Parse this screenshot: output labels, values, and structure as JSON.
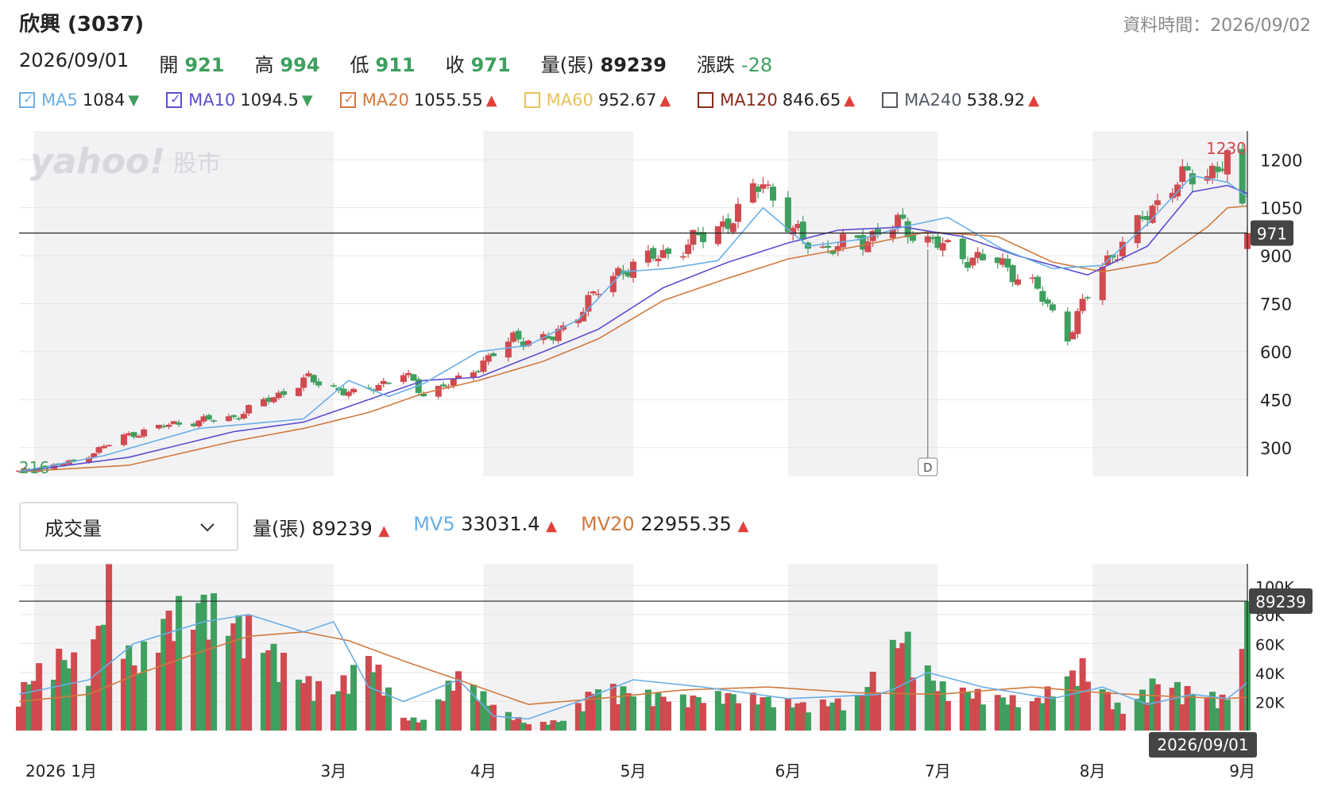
{
  "header": {
    "title": "欣興 (3037)",
    "data_time": "資料時間：2026/09/02"
  },
  "ohlc": {
    "date": "2026/09/01",
    "open_label": "開",
    "open": "921",
    "high_label": "高",
    "high": "994",
    "low_label": "低",
    "low": "911",
    "close_label": "收",
    "close": "971",
    "vol_label": "量(張)",
    "vol": "89239",
    "chg_label": "漲跌",
    "chg": "-28"
  },
  "ma_legend": [
    {
      "name": "MA5",
      "value": "1084",
      "dir": "down",
      "color": "#6aaee6",
      "checked": true
    },
    {
      "name": "MA10",
      "value": "1094.5",
      "dir": "down",
      "color": "#5a4fd0",
      "checked": true
    },
    {
      "name": "MA20",
      "value": "1055.55",
      "dir": "up",
      "color": "#d07a3e",
      "checked": true
    },
    {
      "name": "MA60",
      "value": "952.67",
      "dir": "up",
      "color": "#e8c25a",
      "checked": false
    },
    {
      "name": "MA120",
      "value": "846.65",
      "dir": "up",
      "color": "#8a2a1a",
      "checked": false
    },
    {
      "name": "MA240",
      "value": "538.92",
      "dir": "up",
      "color": "#555a66",
      "checked": false
    }
  ],
  "icons": {
    "arrow_up": "▲",
    "arrow_down": "▼",
    "check": "✓",
    "chevron": "chevron-down-icon"
  },
  "watermark": {
    "brand": "yahoo!",
    "sub": "股市"
  },
  "volume_panel": {
    "select_label": "成交量",
    "vol_label": "量(張)",
    "vol_value": "89239",
    "vol_dir": "up",
    "mv5_label": "MV5",
    "mv5_value": "33031.4",
    "mv5_dir": "up",
    "mv20_label": "MV20",
    "mv20_value": "22955.35",
    "mv20_dir": "up"
  },
  "colors": {
    "up": "#d04a4f",
    "down": "#3f9f5f",
    "ma5": "#6aaee6",
    "ma10": "#5a4fd0",
    "ma20": "#d07a3e",
    "band": "#f2f2f4",
    "grid": "#e6e6e6"
  },
  "chart_data": [
    {
      "type": "candlestick",
      "title": "",
      "x_range": [
        "2025-12-29",
        "2026-09-01"
      ],
      "y_ticks": [
        "1200",
        "1050",
        "900",
        "750",
        "600",
        "450",
        "300"
      ],
      "ylim": [
        210,
        1290
      ],
      "min_label": "216",
      "max_label": "1230",
      "current_price_label": "971",
      "current_price": 971,
      "markers": [
        {
          "label": "D",
          "date": "2026-06-29"
        }
      ],
      "month_labels": [
        {
          "label": "2026 1月",
          "date": "2026-01-01"
        },
        {
          "label": "3月",
          "date": "2026-03-02"
        },
        {
          "label": "4月",
          "date": "2026-04-01"
        },
        {
          "label": "5月",
          "date": "2026-05-01"
        },
        {
          "label": "6月",
          "date": "2026-06-01"
        },
        {
          "label": "7月",
          "date": "2026-07-01"
        },
        {
          "label": "8月",
          "date": "2026-08-01"
        },
        {
          "label": "9月",
          "date": "2026-09-01"
        }
      ],
      "close_path_dates": [
        "2025-12-29",
        "2026-01-09",
        "2026-01-19",
        "2026-01-29",
        "2026-02-10",
        "2026-02-25",
        "2026-03-06",
        "2026-03-16",
        "2026-03-20",
        "2026-03-27",
        "2026-04-07",
        "2026-04-15",
        "2026-04-22",
        "2026-04-29",
        "2026-05-08",
        "2026-05-15",
        "2026-05-22",
        "2026-05-27",
        "2026-06-02",
        "2026-06-09",
        "2026-06-16",
        "2026-06-23",
        "2026-06-29",
        "2026-07-06",
        "2026-07-13",
        "2026-07-20",
        "2026-07-27",
        "2026-08-03",
        "2026-08-10",
        "2026-08-17",
        "2026-08-24",
        "2026-08-28",
        "2026-09-01"
      ],
      "close_path": [
        225,
        255,
        335,
        375,
        395,
        515,
        465,
        530,
        470,
        510,
        640,
        640,
        760,
        860,
        910,
        960,
        1030,
        1140,
        970,
        920,
        950,
        1000,
        950,
        900,
        880,
        810,
        650,
        870,
        990,
        1130,
        1160,
        1200,
        971
      ],
      "ma5_dates": [
        "2025-12-29",
        "2026-01-15",
        "2026-02-03",
        "2026-02-24",
        "2026-03-05",
        "2026-03-13",
        "2026-03-20",
        "2026-03-31",
        "2026-04-10",
        "2026-04-20",
        "2026-04-29",
        "2026-05-08",
        "2026-05-18",
        "2026-05-27",
        "2026-06-05",
        "2026-06-15",
        "2026-06-24",
        "2026-07-03",
        "2026-07-14",
        "2026-07-24",
        "2026-08-03",
        "2026-08-12",
        "2026-08-21",
        "2026-08-28",
        "2026-09-01"
      ],
      "ma5": [
        225,
        275,
        360,
        390,
        510,
        460,
        500,
        600,
        620,
        700,
        850,
        860,
        885,
        1050,
        930,
        950,
        990,
        1020,
        920,
        860,
        870,
        1000,
        1150,
        1130,
        1084
      ],
      "ma10_dates": [
        "2025-12-29",
        "2026-01-20",
        "2026-02-10",
        "2026-02-24",
        "2026-03-09",
        "2026-03-20",
        "2026-03-31",
        "2026-04-13",
        "2026-04-24",
        "2026-05-07",
        "2026-05-20",
        "2026-06-01",
        "2026-06-11",
        "2026-06-24",
        "2026-07-06",
        "2026-07-17",
        "2026-07-31",
        "2026-08-12",
        "2026-08-21",
        "2026-08-28",
        "2026-09-01"
      ],
      "ma10": [
        225,
        270,
        350,
        380,
        450,
        510,
        520,
        600,
        670,
        800,
        880,
        940,
        980,
        990,
        960,
        900,
        840,
        930,
        1100,
        1120,
        1094.5
      ],
      "ma20_dates": [
        "2025-12-29",
        "2026-01-20",
        "2026-02-10",
        "2026-02-24",
        "2026-03-09",
        "2026-03-20",
        "2026-03-31",
        "2026-04-13",
        "2026-04-24",
        "2026-05-07",
        "2026-05-20",
        "2026-06-01",
        "2026-06-15",
        "2026-06-29",
        "2026-07-13",
        "2026-07-24",
        "2026-08-03",
        "2026-08-14",
        "2026-08-24",
        "2026-08-28",
        "2026-09-01"
      ],
      "ma20": [
        225,
        245,
        320,
        360,
        410,
        470,
        510,
        570,
        640,
        760,
        830,
        890,
        930,
        975,
        960,
        880,
        850,
        880,
        990,
        1050,
        1055.55
      ]
    },
    {
      "type": "bar",
      "title": "",
      "y_ticks": [
        "100K",
        "80K",
        "60K",
        "40K",
        "20K"
      ],
      "ylim": [
        0,
        115000
      ],
      "current_volume_label": "89239",
      "current_volume": 89239,
      "crosshair_date_label": "2026/09/01",
      "volume_dates": [
        "2025-12-29",
        "2026-01-05",
        "2026-01-12",
        "2026-01-16",
        "2026-01-21",
        "2026-01-28",
        "2026-02-04",
        "2026-02-10",
        "2026-02-13",
        "2026-02-24",
        "2026-03-02",
        "2026-03-09",
        "2026-03-16",
        "2026-03-20",
        "2026-03-27",
        "2026-04-03",
        "2026-04-10",
        "2026-04-17",
        "2026-04-24",
        "2026-05-01",
        "2026-05-11",
        "2026-05-20",
        "2026-05-28",
        "2026-06-05",
        "2026-06-15",
        "2026-06-24",
        "2026-07-01",
        "2026-07-10",
        "2026-07-20",
        "2026-07-30",
        "2026-08-07",
        "2026-08-14",
        "2026-08-21",
        "2026-08-28",
        "2026-09-01"
      ],
      "volume_levels": [
        30000,
        60000,
        50000,
        115000,
        50000,
        90000,
        100000,
        85000,
        80000,
        40000,
        30000,
        60000,
        10000,
        8000,
        45000,
        20000,
        5000,
        8000,
        35000,
        30000,
        25000,
        28000,
        25000,
        20000,
        25000,
        75000,
        35000,
        28000,
        22000,
        50000,
        15000,
        40000,
        30000,
        25000,
        89239
      ],
      "mv5_dates": [
        "2025-12-29",
        "2026-01-12",
        "2026-01-21",
        "2026-02-04",
        "2026-02-13",
        "2026-02-24",
        "2026-03-02",
        "2026-03-09",
        "2026-03-16",
        "2026-03-27",
        "2026-04-03",
        "2026-04-10",
        "2026-04-20",
        "2026-05-01",
        "2026-05-15",
        "2026-06-01",
        "2026-06-20",
        "2026-06-29",
        "2026-07-10",
        "2026-07-24",
        "2026-08-03",
        "2026-08-12",
        "2026-08-21",
        "2026-08-28",
        "2026-09-01"
      ],
      "mv5": [
        25000,
        35000,
        60000,
        75000,
        80000,
        68000,
        75000,
        30000,
        20000,
        35000,
        10000,
        8000,
        20000,
        35000,
        30000,
        22000,
        25000,
        40000,
        30000,
        22000,
        30000,
        18000,
        25000,
        22000,
        33031.4
      ],
      "mv20_dates": [
        "2025-12-29",
        "2026-01-12",
        "2026-01-21",
        "2026-02-04",
        "2026-02-13",
        "2026-02-24",
        "2026-03-05",
        "2026-03-16",
        "2026-03-27",
        "2026-04-10",
        "2026-04-24",
        "2026-05-11",
        "2026-05-28",
        "2026-06-15",
        "2026-07-01",
        "2026-07-20",
        "2026-08-03",
        "2026-08-14",
        "2026-08-28",
        "2026-09-01"
      ],
      "mv20": [
        20000,
        25000,
        38000,
        55000,
        65000,
        68000,
        62000,
        48000,
        35000,
        18000,
        22000,
        28000,
        30000,
        26000,
        25000,
        30000,
        26000,
        24000,
        22000,
        22955.35
      ]
    }
  ]
}
